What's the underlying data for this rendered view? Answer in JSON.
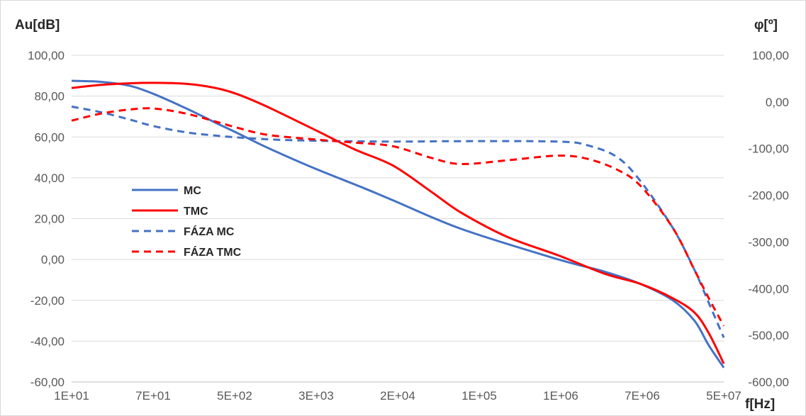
{
  "chart_data": {
    "type": "line",
    "y_title": "Au[dB]",
    "y2_title": "φ[º]",
    "x_title": "f[Hz]",
    "x_scale": "log",
    "x_ticks": [
      "1E+01",
      "7E+01",
      "5E+02",
      "3E+03",
      "2E+04",
      "1E+05",
      "1E+06",
      "7E+06",
      "5E+07"
    ],
    "y_ticks": [
      "100,00",
      "80,00",
      "60,00",
      "40,00",
      "20,00",
      "0,00",
      "-20,00",
      "-40,00",
      "-60,00"
    ],
    "y2_ticks": [
      "100,00",
      "0,00",
      "-100,00",
      "-200,00",
      "-300,00",
      "-400,00",
      "-500,00",
      "-600,00"
    ],
    "ylim": [
      -60,
      100
    ],
    "y2lim": [
      -600,
      100
    ],
    "grid": true,
    "legend_position": "left-middle",
    "series": [
      {
        "name": "MC",
        "axis": "left",
        "color": "#4472C4",
        "dashed": false,
        "x": [
          10,
          20,
          40,
          70,
          150,
          300,
          500,
          1000,
          3000,
          10000,
          20000,
          100000,
          1000000,
          3000000,
          7000000,
          15000000,
          25000000,
          35000000,
          50000000
        ],
        "y": [
          87.5,
          87,
          85,
          81,
          74,
          67,
          62,
          55,
          45,
          35,
          29,
          15,
          0,
          -6,
          -12,
          -20,
          -30,
          -42,
          -53
        ]
      },
      {
        "name": "TMC",
        "axis": "left",
        "color": "#FF0000",
        "dashed": false,
        "x": [
          10,
          20,
          40,
          70,
          150,
          300,
          500,
          1000,
          3000,
          8000,
          20000,
          50000,
          100000,
          300000,
          1000000,
          3000000,
          7000000,
          15000000,
          25000000,
          35000000,
          50000000
        ],
        "y": [
          84,
          85.5,
          86.3,
          86.5,
          86,
          84,
          81,
          75,
          64,
          54,
          46,
          33,
          23,
          11,
          2,
          -7,
          -12,
          -19,
          -26,
          -36,
          -51
        ]
      },
      {
        "name": "FÁZA MC",
        "axis": "right",
        "color": "#4472C4",
        "dashed": true,
        "x": [
          10,
          20,
          40,
          70,
          150,
          300,
          500,
          1000,
          3000,
          20000,
          100000,
          1000000,
          2000000,
          4000000,
          7000000,
          15000000,
          25000000,
          35000000,
          50000000
        ],
        "y": [
          -10,
          -22,
          -38,
          -52,
          -65,
          -72,
          -76,
          -80,
          -83,
          -85,
          -84,
          -85,
          -93,
          -118,
          -170,
          -270,
          -360,
          -430,
          -505
        ]
      },
      {
        "name": "FÁZA TMC",
        "axis": "right",
        "color": "#FF0000",
        "dashed": true,
        "x": [
          10,
          20,
          40,
          70,
          150,
          300,
          500,
          1000,
          3000,
          8000,
          20000,
          50000,
          100000,
          300000,
          1000000,
          2000000,
          4000000,
          7000000,
          15000000,
          25000000,
          35000000,
          50000000
        ],
        "y": [
          -40,
          -25,
          -16,
          -14,
          -25,
          -42,
          -55,
          -70,
          -80,
          -87,
          -95,
          -120,
          -133,
          -125,
          -115,
          -122,
          -145,
          -180,
          -270,
          -360,
          -420,
          -480
        ]
      }
    ]
  }
}
